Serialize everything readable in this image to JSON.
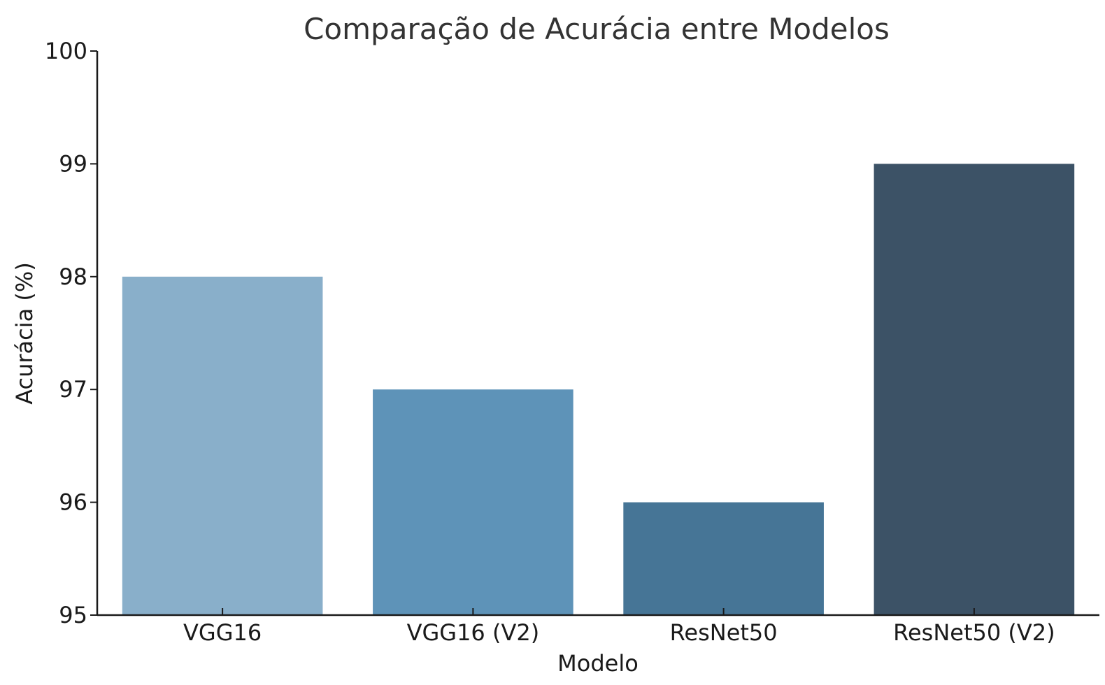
{
  "chart_data": {
    "type": "bar",
    "title": "Comparação de Acurácia entre Modelos",
    "xlabel": "Modelo",
    "ylabel": "Acurácia (%)",
    "categories": [
      "VGG16",
      "VGG16 (V2)",
      "ResNet50",
      "ResNet50 (V2)"
    ],
    "values": [
      98,
      97,
      96,
      99
    ],
    "colors": [
      "#89afca",
      "#5e93b8",
      "#467596",
      "#3c5266"
    ],
    "ylim": [
      95,
      100
    ],
    "yticks": [
      "95",
      "96",
      "97",
      "98",
      "99",
      "100"
    ],
    "grid": false,
    "legend": "none"
  }
}
